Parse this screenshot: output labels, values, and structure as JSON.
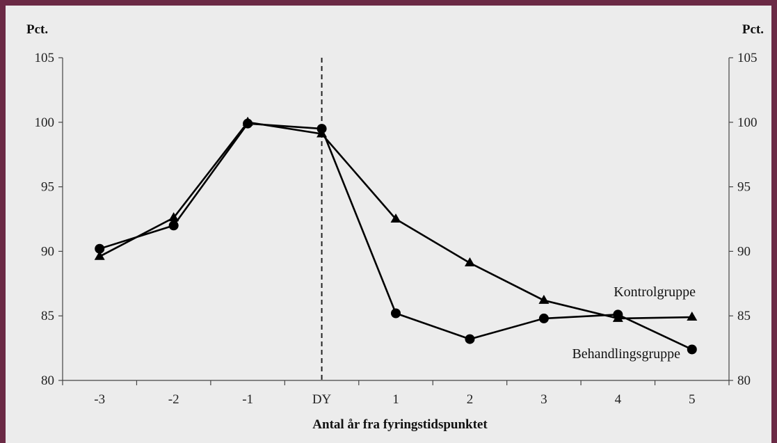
{
  "chart_data": {
    "type": "line",
    "x": [
      "-3",
      "-2",
      "-1",
      "DY",
      "1",
      "2",
      "3",
      "4",
      "5"
    ],
    "xlabel": "Antal år fra fyringstidspunktet",
    "ylabel_left": "Pct.",
    "ylabel_right": "Pct.",
    "ylim": [
      80,
      105
    ],
    "yticks": [
      80,
      85,
      90,
      95,
      100,
      105
    ],
    "grid": false,
    "reference_line": {
      "x": "DY",
      "style": "dashed"
    },
    "series": [
      {
        "name": "Kontrolgruppe",
        "marker": "triangle",
        "values": [
          89.6,
          92.6,
          100.0,
          99.1,
          92.5,
          89.1,
          86.2,
          84.8,
          84.9
        ]
      },
      {
        "name": "Behandlingsgruppe",
        "marker": "circle",
        "values": [
          90.2,
          92.0,
          99.9,
          99.5,
          85.2,
          83.2,
          84.8,
          85.1,
          82.4
        ]
      }
    ],
    "colors": {
      "series": "#000000",
      "background": "#ececec",
      "border": "#6b2a45"
    }
  }
}
